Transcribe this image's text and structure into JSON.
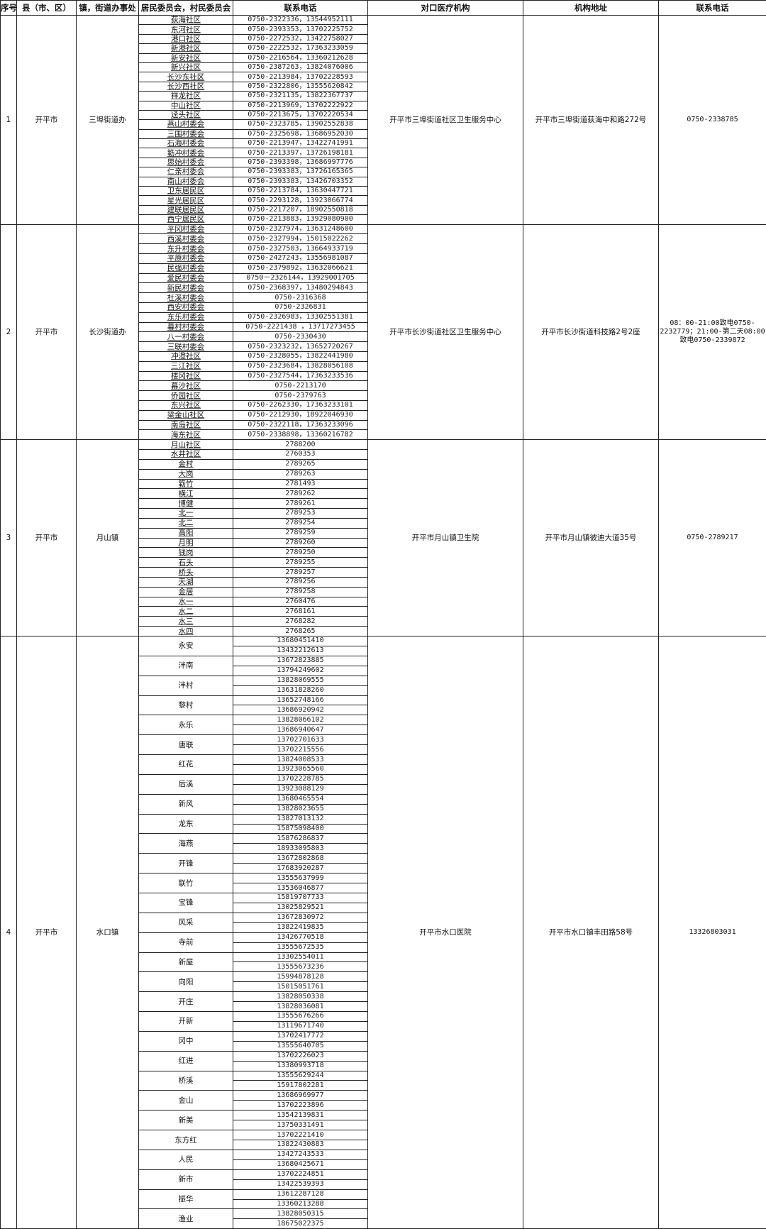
{
  "headers": [
    "序号",
    "县（市、区）",
    "镇，街道办事处",
    "居民委员会，村民委员会",
    "联系电话",
    "对口医疗机构",
    "机构地址",
    "联系电话"
  ],
  "sections": [
    {
      "no": "1",
      "county": "开平市",
      "town": "三埠街道办",
      "institution": "开平市三埠街道社区卫生服务中心",
      "address": "开平市三埠街道荻海中和路272号",
      "phone": "0750-2338785",
      "entries": [
        {
          "name": "荻海社区",
          "phone": "0750-2322336，13544952111"
        },
        {
          "name": "东河社区",
          "phone": "0750-2393353，13702225752"
        },
        {
          "name": "港口社区",
          "phone": "0750-2272532，13422758027"
        },
        {
          "name": "新港社区",
          "phone": "0750-2222532，17363233059"
        },
        {
          "name": "新安社区",
          "phone": "0750-2216564，13360212628"
        },
        {
          "name": "新兴社区",
          "phone": "0750-2387263，13824076006"
        },
        {
          "name": "长沙东社区",
          "phone": "0750-2213984，13702228593"
        },
        {
          "name": "长沙西社区",
          "phone": "0750-2322806，13555620842"
        },
        {
          "name": "祥龙社区",
          "phone": "0750-2321135，13822367737"
        },
        {
          "name": "中山社区",
          "phone": "0750-2213969，13702222922"
        },
        {
          "name": "迳头社区",
          "phone": "0750-2213675，13702220534"
        },
        {
          "name": "燕山村委会",
          "phone": "0750-2323785，13902552838"
        },
        {
          "name": "三围村委会",
          "phone": "0750-2325698，13686952030"
        },
        {
          "name": "石海村委会",
          "phone": "0750-2213947，13422741991"
        },
        {
          "name": "簕冲村委会",
          "phone": "0750-2213397，13726198181"
        },
        {
          "name": "思始村委会",
          "phone": "0750-2393398，13686997776"
        },
        {
          "name": "仁亲村委会",
          "phone": "0750-2393383，13726165365"
        },
        {
          "name": "南山村委会",
          "phone": "0750-2393383，13426703352"
        },
        {
          "name": "卫东居民区",
          "phone": "0750-2213784，13630447721"
        },
        {
          "name": "星光居民区",
          "phone": "0750-2293128，13923066774"
        },
        {
          "name": "建联居民区",
          "phone": "0750-2217207，18902550818"
        },
        {
          "name": "西宁居民区",
          "phone": "0750-2213883，13929080900"
        }
      ]
    },
    {
      "no": "2",
      "county": "开平市",
      "town": "长沙街道办",
      "institution": "开平市长沙街道社区卫生服务中心",
      "address": "开平市长沙街道科技路2号2座",
      "phone": "08：00-21:00致电0750-2232779；21:00-第二天08:00致电0750-2339872",
      "entries": [
        {
          "name": "平冈村委会",
          "phone": "0750-2327974，13631248600"
        },
        {
          "name": "西溪村委会",
          "phone": "0750-2327994，15015022262"
        },
        {
          "name": "东升村委会",
          "phone": "0750-2327503，13664933719"
        },
        {
          "name": "平原村委会",
          "phone": "0750-2427243，13556981087"
        },
        {
          "name": "民强村委会",
          "phone": "0750-2379892，13632066621"
        },
        {
          "name": "爱民村委会",
          "phone": "0750－2326144，13929001705"
        },
        {
          "name": "新民村委会",
          "phone": "0750-2368397，13480294843"
        },
        {
          "name": "杜溪村委会",
          "phone": "0750-2316368"
        },
        {
          "name": "西安村委会",
          "phone": "0750-2326831"
        },
        {
          "name": "东乐村委会",
          "phone": "0750-2326983，13302551381"
        },
        {
          "name": "幕村村委会",
          "phone": "0750-2221438 ，13717273455"
        },
        {
          "name": "八一村委会",
          "phone": "0750-2330430"
        },
        {
          "name": "三联村委会",
          "phone": "0750-2323232，13652720267"
        },
        {
          "name": "冲澄社区",
          "phone": "0750-2328055，13822441980"
        },
        {
          "name": "三江社区",
          "phone": "0750-2323684，13828056108"
        },
        {
          "name": "楼冈社区",
          "phone": "0750-2327544，17363233536"
        },
        {
          "name": "幕沙社区",
          "phone": "0750-2213170"
        },
        {
          "name": "侨园社区",
          "phone": "0750-2379763"
        },
        {
          "name": "东兴社区",
          "phone": "0750-2262330，17363233101"
        },
        {
          "name": "梁金山社区",
          "phone": "0750-2212930，18922046930"
        },
        {
          "name": "南岛社区",
          "phone": "0750-2322118，17363233096"
        },
        {
          "name": "海东社区",
          "phone": "0750-2338898，13360216782"
        }
      ]
    },
    {
      "no": "3",
      "county": "开平市",
      "town": "月山镇",
      "institution": "开平市月山镇卫生院",
      "address": "开平市月山镇彼迪大道35号",
      "phone": "0750-2789217",
      "entries": [
        {
          "name": "月山社区",
          "phone": "2788200"
        },
        {
          "name": "水井社区",
          "phone": "2760353"
        },
        {
          "name": "金村",
          "phone": "2789265"
        },
        {
          "name": "大岗",
          "phone": "2789263"
        },
        {
          "name": "簕竹",
          "phone": "2781493"
        },
        {
          "name": "横江",
          "phone": "2789262"
        },
        {
          "name": "博健",
          "phone": "2789261"
        },
        {
          "name": "北一",
          "phone": "2789253"
        },
        {
          "name": "北二",
          "phone": "2789254"
        },
        {
          "name": "高阳",
          "phone": "2789259"
        },
        {
          "name": "月明",
          "phone": "2789260"
        },
        {
          "name": "钱岗",
          "phone": "2789250"
        },
        {
          "name": "石头",
          "phone": "2789255"
        },
        {
          "name": "桥头",
          "phone": "2789257"
        },
        {
          "name": "天湖",
          "phone": "2789256"
        },
        {
          "name": "金居",
          "phone": "2789258"
        },
        {
          "name": "水一",
          "phone": "2760476"
        },
        {
          "name": "水二",
          "phone": "2768161"
        },
        {
          "name": "水三",
          "phone": "2768282"
        },
        {
          "name": "水四",
          "phone": "2768265"
        }
      ]
    },
    {
      "no": "4",
      "county": "开平市",
      "town": "水口镇",
      "institution": "开平市水口医院",
      "address": "开平市水口镇丰田路58号",
      "phone": "13326803031",
      "villages": [
        {
          "name": "永安",
          "phones": [
            "13680451410",
            "13432212613"
          ]
        },
        {
          "name": "泮南",
          "phones": [
            "13672823885",
            "13794249602"
          ]
        },
        {
          "name": "泮村",
          "phones": [
            "13828069555",
            "13631828260"
          ]
        },
        {
          "name": "黎村",
          "phones": [
            "13652748166",
            "13686920942"
          ]
        },
        {
          "name": "永乐",
          "phones": [
            "13828066102",
            "13686940647"
          ]
        },
        {
          "name": "唐联",
          "phones": [
            "13702701633",
            "13702215556"
          ]
        },
        {
          "name": "红花",
          "phones": [
            "13824008533",
            "13923065560"
          ]
        },
        {
          "name": "后溪",
          "phones": [
            "13702228785",
            "13923088129"
          ]
        },
        {
          "name": "新风",
          "phones": [
            "13680465554",
            "13828023655"
          ]
        },
        {
          "name": "龙东",
          "phones": [
            "13827013132",
            "15875098400"
          ]
        },
        {
          "name": "海燕",
          "phones": [
            "15876286837",
            "18933095803"
          ]
        },
        {
          "name": "开锋",
          "phones": [
            "13672802868",
            "17683920287"
          ]
        },
        {
          "name": "联竹",
          "phones": [
            "13555637999",
            "13536046877"
          ]
        },
        {
          "name": "宝锋",
          "phones": [
            "15819707733",
            "13025829521"
          ]
        },
        {
          "name": "风采",
          "phones": [
            "13672830972",
            "13822419835"
          ]
        },
        {
          "name": "寺前",
          "phones": [
            "13426770518",
            "13555672535"
          ]
        },
        {
          "name": "新屋",
          "phones": [
            "13302554011",
            "13555673236"
          ]
        },
        {
          "name": "向阳",
          "phones": [
            "15994878128",
            "15015051761"
          ]
        },
        {
          "name": "开庄",
          "phones": [
            "13828050338",
            "13828036081"
          ]
        },
        {
          "name": "开新",
          "phones": [
            "13555676266",
            "13119671740"
          ]
        },
        {
          "name": "冈中",
          "phones": [
            "13702417772",
            "13555640705"
          ]
        },
        {
          "name": "红进",
          "phones": [
            "13702226023",
            "13380993718"
          ]
        },
        {
          "name": "桥溪",
          "phones": [
            "13555629244",
            "15917802281"
          ]
        },
        {
          "name": "金山",
          "phones": [
            "13686969977",
            "13702223896"
          ]
        },
        {
          "name": "新美",
          "phones": [
            "13542139831",
            "13750331491"
          ]
        },
        {
          "name": "东方红",
          "phones": [
            "13702221410",
            "13822430883"
          ]
        },
        {
          "name": "人民",
          "phones": [
            "13427243533",
            "13680425671"
          ]
        },
        {
          "name": "新市",
          "phones": [
            "13702224851",
            "13422539393"
          ]
        },
        {
          "name": "振华",
          "phones": [
            "13612287128",
            "13360213288"
          ]
        },
        {
          "name": "渔业",
          "phones": [
            "13828050315",
            "18675022375"
          ]
        }
      ]
    }
  ]
}
